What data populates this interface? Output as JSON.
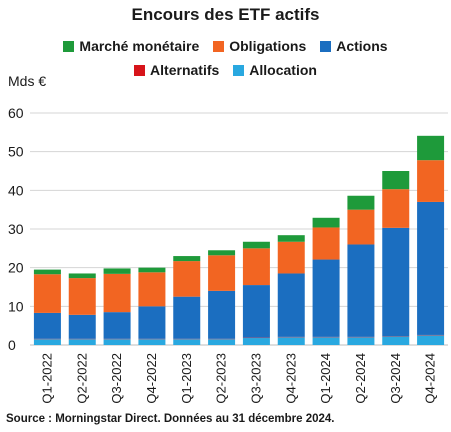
{
  "chart_data": {
    "type": "bar",
    "stacked": true,
    "title": "Encours des ETF actifs",
    "ylabel": "Mds €",
    "ylim": [
      0,
      60
    ],
    "yticks": [
      0,
      10,
      20,
      30,
      40,
      50,
      60
    ],
    "grid": true,
    "legend_position": "top",
    "categories": [
      "Q1-2022",
      "Q2-2022",
      "Q3-2022",
      "Q4-2022",
      "Q1-2023",
      "Q2-2023",
      "Q3-2023",
      "Q4-2023",
      "Q1-2024",
      "Q2-2024",
      "Q3-2024",
      "Q4-2024"
    ],
    "series": [
      {
        "name": "Allocation",
        "color": "#29a8e0",
        "values": [
          1.5,
          1.5,
          1.5,
          1.5,
          1.5,
          1.5,
          1.8,
          2.0,
          2.0,
          2.0,
          2.2,
          2.5
        ]
      },
      {
        "name": "Alternatifs",
        "color": "#d7141a",
        "values": [
          0.1,
          0.1,
          0.1,
          0.1,
          0.1,
          0.1,
          0.1,
          0.1,
          0.1,
          0.1,
          0.1,
          0.1
        ]
      },
      {
        "name": "Actions",
        "color": "#1b6ec0",
        "values": [
          6.7,
          6.2,
          6.9,
          8.4,
          10.9,
          12.4,
          13.6,
          16.4,
          20.0,
          23.9,
          28.0,
          34.4
        ]
      },
      {
        "name": "Obligations",
        "color": "#f26522",
        "values": [
          10.0,
          9.5,
          9.9,
          8.8,
          9.2,
          9.2,
          9.5,
          8.2,
          8.3,
          9.0,
          10.0,
          10.8
        ]
      },
      {
        "name": "Marché monétaire",
        "color": "#1e9a3a",
        "values": [
          1.2,
          1.2,
          1.4,
          1.2,
          1.3,
          1.3,
          1.7,
          1.7,
          2.5,
          3.6,
          4.7,
          6.3
        ]
      }
    ],
    "source": "Source : Morningstar Direct. Données au 31 décembre 2024."
  }
}
